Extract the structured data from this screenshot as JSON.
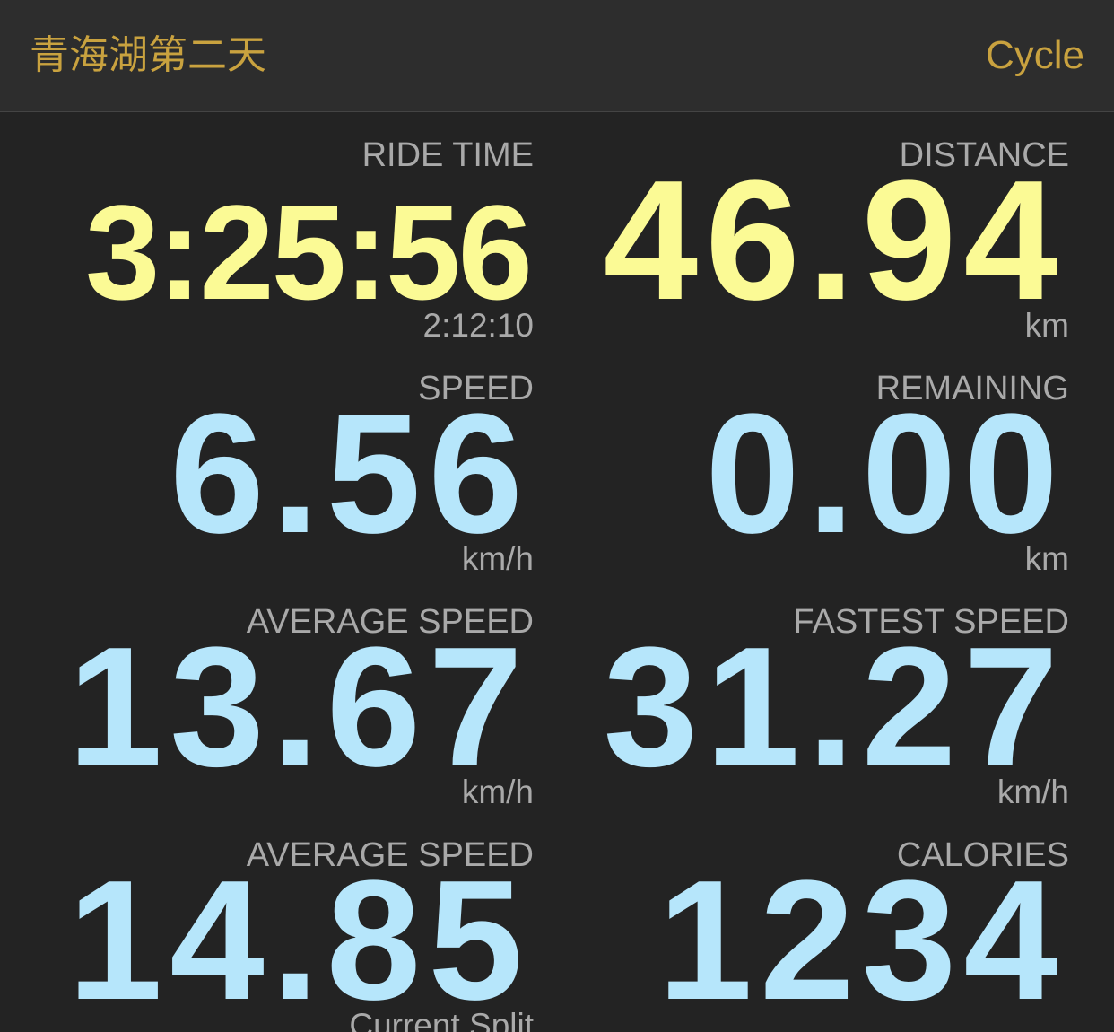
{
  "header": {
    "title": "青海湖第二天",
    "action": "Cycle"
  },
  "tiles": [
    {
      "label": "RIDE TIME",
      "value": "3:25:56",
      "sub": "2:12:10"
    },
    {
      "label": "DISTANCE",
      "value": "46.94",
      "sub": "km"
    },
    {
      "label": "SPEED",
      "value": "6.56",
      "sub": "km/h"
    },
    {
      "label": "REMAINING",
      "value": "0.00",
      "sub": "km"
    },
    {
      "label": "AVERAGE SPEED",
      "value": "13.67",
      "sub": "km/h"
    },
    {
      "label": "FASTEST SPEED",
      "value": "31.27",
      "sub": "km/h"
    },
    {
      "label": "AVERAGE SPEED",
      "value": "14.85",
      "sub": "Current Split"
    },
    {
      "label": "CALORIES",
      "value": "1234"
    }
  ]
}
